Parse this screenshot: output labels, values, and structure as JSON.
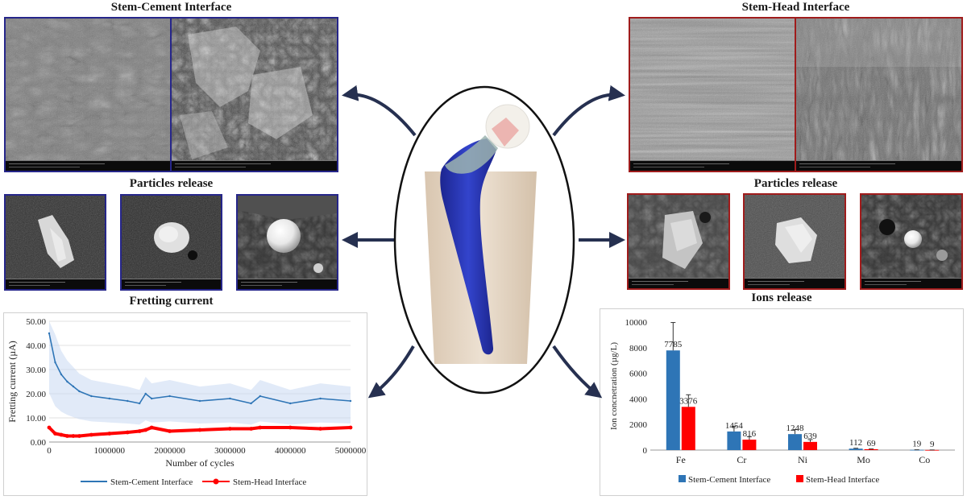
{
  "sections": {
    "stem_cement_title": "Stem-Cement Interface",
    "stem_head_title": "Stem-Head Interface",
    "particles_left_title": "Particles release",
    "particles_right_title": "Particles release",
    "fretting_title": "Fretting current",
    "ions_title": "Ions release"
  },
  "colors": {
    "cement_frame": "#26268a",
    "head_frame": "#a01c1c",
    "arrow": "#263050",
    "stem": "#2a35b8",
    "bone": "#e6d8c6",
    "series_blue": "#2e75b6",
    "series_red": "#ff0000",
    "bar_blue": "#2e75b6",
    "bar_red": "#ff0000"
  },
  "chart_data": [
    {
      "type": "line",
      "x": [
        0,
        100000,
        200000,
        300000,
        400000,
        500000,
        700000,
        1000000,
        1300000,
        1500000,
        1600000,
        1700000,
        2000000,
        2500000,
        3000000,
        3350000,
        3500000,
        4000000,
        4500000,
        5000000
      ],
      "series": [
        {
          "name": "Stem-Cement Interface",
          "color": "#2e75b6",
          "values": [
            45,
            33,
            28,
            25,
            23,
            21,
            19,
            18,
            17,
            16,
            20,
            18,
            19,
            17,
            18,
            16,
            19,
            16,
            18,
            17
          ]
        },
        {
          "name": "Stem-Head Interface",
          "color": "#ff0000",
          "values": [
            6,
            3.5,
            3,
            2.5,
            2.5,
            2.5,
            3,
            3.5,
            4,
            4.5,
            5,
            6,
            4.5,
            5,
            5.5,
            5.5,
            6,
            6,
            5.5,
            6
          ]
        }
      ],
      "xlabel": "Number of cycles",
      "ylabel": "Fretting current (µA)",
      "xlim": [
        0,
        5000000
      ],
      "ylim": [
        0,
        50
      ],
      "xticks": [
        "0",
        "1000000",
        "2000000",
        "3000000",
        "4000000",
        "5000000"
      ],
      "yticks": [
        "0.00",
        "10.00",
        "20.00",
        "30.00",
        "40.00",
        "50.00"
      ],
      "legend": "bottom"
    },
    {
      "type": "bar",
      "categories": [
        "Fe",
        "Cr",
        "Ni",
        "Mo",
        "Co"
      ],
      "series": [
        {
          "name": "Stem-Cement Interface",
          "color": "#2e75b6",
          "values": [
            7785,
            1454,
            1248,
            112,
            19
          ]
        },
        {
          "name": "Stem-Head Interface",
          "color": "#ff0000",
          "values": [
            3376,
            816,
            639,
            69,
            9
          ]
        }
      ],
      "ylabel": "Ion concnetration (µg/L)",
      "ylim": [
        0,
        10000
      ],
      "yticks": [
        "0",
        "2000",
        "4000",
        "6000",
        "8000",
        "10000"
      ],
      "legend": "bottom"
    }
  ]
}
